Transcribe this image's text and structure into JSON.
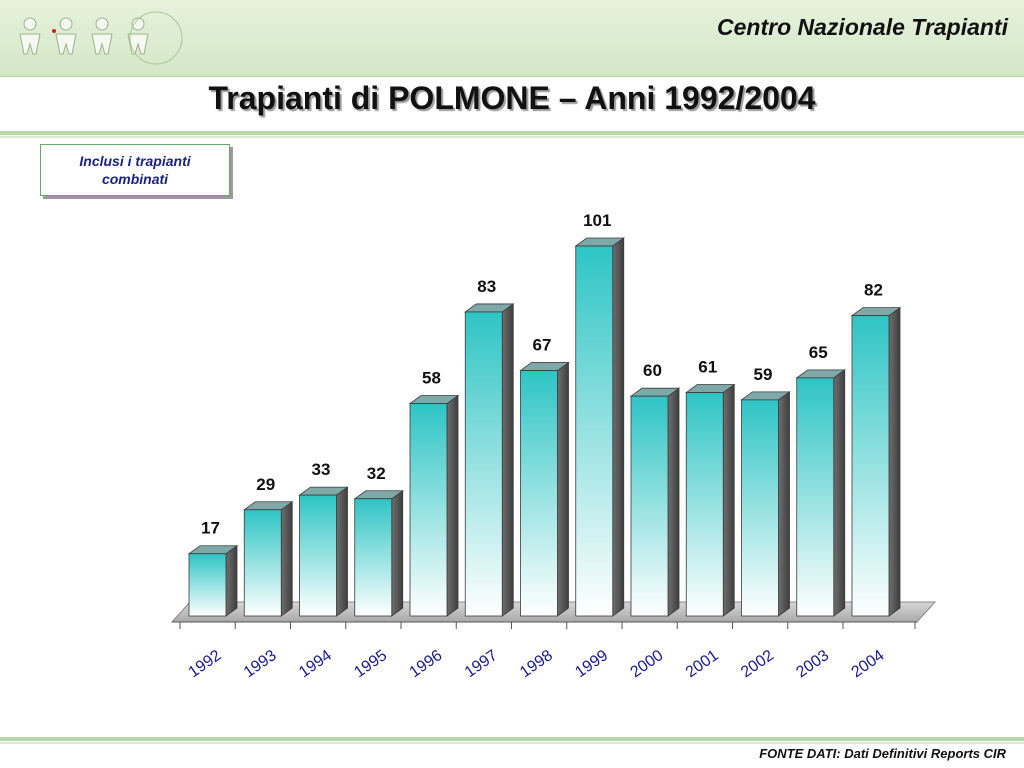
{
  "header": {
    "org_name": "Centro Nazionale Trapianti",
    "logo_icon": "people-figures-logo-icon"
  },
  "title": "Trapianti di POLMONE – Anni 1992/2004",
  "note": "Inclusi i trapianti combinati",
  "footer": "FONTE DATI: Dati Definitivi Reports CIR",
  "colors": {
    "bar_top": "#2ec4c4",
    "bar_bottom": "#ffffff",
    "tick_label": "#1a1a8c",
    "value_label": "#111111"
  },
  "chart_data": {
    "type": "bar",
    "categories": [
      "1992",
      "1993",
      "1994",
      "1995",
      "1996",
      "1997",
      "1998",
      "1999",
      "2000",
      "2001",
      "2002",
      "2003",
      "2004"
    ],
    "values": [
      17,
      29,
      33,
      32,
      58,
      83,
      67,
      101,
      60,
      61,
      59,
      65,
      82
    ],
    "title": "",
    "xlabel": "",
    "ylabel": "",
    "ylim": [
      0,
      110
    ],
    "grid": false,
    "legend": "none",
    "style": "3d-columns"
  }
}
